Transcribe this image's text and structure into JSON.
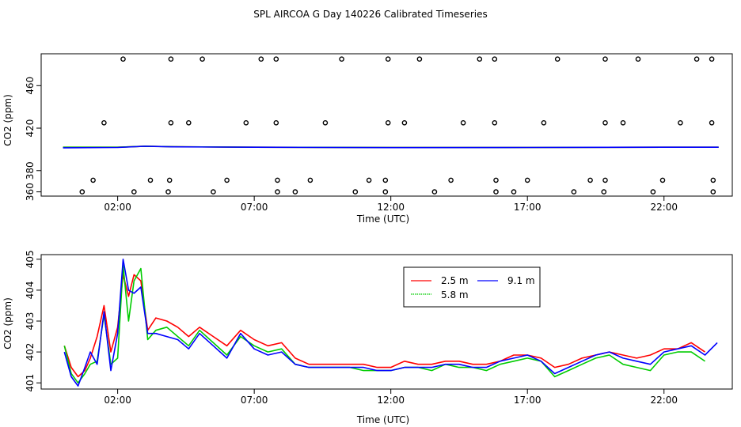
{
  "title": "SPL AIRCOA G  Day 140226  Calibrated Timeseries",
  "chart_data": [
    {
      "type": "scatter+line",
      "xlabel": "Time (UTC)",
      "ylabel": "CO2 (ppm)",
      "xlim": [
        -0.8,
        24.5
      ],
      "ylim": [
        356,
        490
      ],
      "x_ticks": [
        2,
        7,
        12,
        17,
        22
      ],
      "x_tick_labels": [
        "02:00",
        "07:00",
        "12:00",
        "17:00",
        "22:00"
      ],
      "y_ticks": [
        360,
        380,
        420,
        460
      ],
      "y_tick_labels": [
        "360",
        "380",
        "420",
        "460"
      ],
      "calibration_points": {
        "x": [
          2.2,
          3.95,
          5.1,
          7.25,
          7.8,
          10.2,
          11.9,
          13.05,
          15.25,
          15.8,
          18.1,
          19.85,
          21.05,
          23.2,
          23.75,
          1.5,
          3.95,
          4.6,
          6.7,
          7.8,
          9.6,
          11.9,
          12.5,
          14.65,
          15.8,
          17.6,
          19.85,
          20.5,
          22.6,
          23.75,
          1.1,
          3.2,
          3.9,
          6.0,
          7.85,
          9.05,
          11.2,
          11.8,
          14.2,
          15.85,
          17.0,
          19.3,
          19.85,
          21.95,
          23.8,
          0.7,
          2.6,
          3.85,
          5.5,
          7.85,
          8.5,
          10.7,
          11.8,
          13.6,
          15.85,
          16.5,
          18.7,
          19.8,
          21.6,
          23.8
        ],
        "y": [
          485,
          485,
          485,
          485,
          485,
          485,
          485,
          485,
          485,
          485,
          485,
          485,
          485,
          485,
          485,
          425,
          425,
          425,
          425,
          425,
          425,
          425,
          425,
          425,
          425,
          425,
          425,
          425,
          425,
          425,
          371,
          371,
          371,
          371,
          371,
          371,
          371,
          371,
          371,
          371,
          371,
          371,
          371,
          371,
          371,
          360,
          360,
          360,
          360,
          360,
          360,
          360,
          360,
          360,
          360,
          360,
          360,
          360,
          360,
          360
        ]
      },
      "series": [
        {
          "name": "2.5 m",
          "color": "#ff0000",
          "x": [
            0,
            2,
            3,
            4,
            7,
            12,
            17,
            22,
            24
          ],
          "values": [
            402,
            402,
            403,
            402.5,
            402,
            401.7,
            401.8,
            402,
            402
          ]
        },
        {
          "name": "5.8 m",
          "color": "#00cc00",
          "x": [
            0,
            2,
            3,
            4,
            7,
            12,
            17,
            22,
            24
          ],
          "values": [
            402,
            402,
            403,
            402.5,
            402,
            401.7,
            401.8,
            402,
            402
          ]
        },
        {
          "name": "9.1 m",
          "color": "#0000ff",
          "x": [
            0,
            2,
            3,
            4,
            7,
            12,
            17,
            22,
            24
          ],
          "values": [
            401.5,
            401.8,
            403,
            402.4,
            402,
            401.6,
            401.8,
            402,
            402
          ]
        }
      ]
    },
    {
      "type": "line",
      "xlabel": "Time (UTC)",
      "ylabel": "CO2 (ppm)",
      "xlim": [
        -0.8,
        24.5
      ],
      "ylim": [
        400.8,
        405.15
      ],
      "x_ticks": [
        2,
        7,
        12,
        17,
        22
      ],
      "x_tick_labels": [
        "02:00",
        "07:00",
        "12:00",
        "17:00",
        "22:00"
      ],
      "y_ticks": [
        401,
        402,
        403,
        404,
        405
      ],
      "y_tick_labels": [
        "401",
        "402",
        "403",
        "404",
        "405"
      ],
      "legend": {
        "position": "top-center",
        "entries": [
          "2.5 m",
          "9.1 m",
          "5.8 m"
        ]
      },
      "series": [
        {
          "name": "2.5 m",
          "color": "#ff0000",
          "x": [
            0.05,
            0.3,
            0.55,
            0.8,
            1.0,
            1.25,
            1.5,
            1.75,
            2.0,
            2.2,
            2.4,
            2.6,
            2.85,
            3.1,
            3.4,
            3.8,
            4.2,
            4.6,
            5.0,
            5.5,
            6.0,
            6.5,
            7.0,
            7.5,
            8.0,
            8.5,
            9.0,
            9.5,
            10.0,
            10.5,
            11.0,
            11.5,
            12.0,
            12.5,
            13.0,
            13.5,
            14.0,
            14.5,
            15.0,
            15.5,
            16.0,
            16.5,
            17.0,
            17.5,
            18.0,
            18.5,
            19.0,
            19.5,
            20.0,
            20.5,
            21.0,
            21.5,
            22.0,
            22.5,
            23.0,
            23.5
          ],
          "values": [
            402.2,
            401.5,
            401.2,
            401.4,
            401.8,
            402.5,
            403.5,
            402.0,
            402.8,
            404.5,
            403.8,
            404.5,
            404.3,
            402.7,
            403.1,
            403.0,
            402.8,
            402.5,
            402.8,
            402.5,
            402.2,
            402.7,
            402.4,
            402.2,
            402.3,
            401.8,
            401.6,
            401.6,
            401.6,
            401.6,
            401.6,
            401.5,
            401.5,
            401.7,
            401.6,
            401.6,
            401.7,
            401.7,
            401.6,
            401.6,
            401.7,
            401.9,
            401.9,
            401.8,
            401.5,
            401.6,
            401.8,
            401.9,
            402.0,
            401.9,
            401.8,
            401.9,
            402.1,
            402.1,
            402.3,
            402.0
          ]
        },
        {
          "name": "5.8 m",
          "color": "#00cc00",
          "x": [
            0.05,
            0.3,
            0.55,
            0.8,
            1.0,
            1.25,
            1.5,
            1.75,
            2.0,
            2.2,
            2.4,
            2.6,
            2.85,
            3.1,
            3.4,
            3.8,
            4.2,
            4.6,
            5.0,
            5.5,
            6.0,
            6.5,
            7.0,
            7.5,
            8.0,
            8.5,
            9.0,
            9.5,
            10.0,
            10.5,
            11.0,
            11.5,
            12.0,
            12.5,
            13.0,
            13.5,
            14.0,
            14.5,
            15.0,
            15.5,
            16.0,
            16.5,
            17.0,
            17.5,
            18.0,
            18.5,
            19.0,
            19.5,
            20.0,
            20.5,
            21.0,
            21.5,
            22.0,
            22.5,
            23.0,
            23.5
          ],
          "values": [
            402.2,
            401.3,
            401.0,
            401.3,
            401.6,
            401.7,
            403.2,
            401.6,
            401.8,
            404.8,
            403.0,
            404.3,
            404.7,
            402.4,
            402.7,
            402.8,
            402.5,
            402.2,
            402.7,
            402.3,
            401.9,
            402.5,
            402.2,
            402.0,
            402.1,
            401.6,
            401.5,
            401.5,
            401.5,
            401.5,
            401.4,
            401.4,
            401.4,
            401.5,
            401.5,
            401.4,
            401.6,
            401.5,
            401.5,
            401.4,
            401.6,
            401.7,
            401.8,
            401.7,
            401.2,
            401.4,
            401.6,
            401.8,
            401.9,
            401.6,
            401.5,
            401.4,
            401.9,
            402.0,
            402.0,
            401.7
          ]
        },
        {
          "name": "9.1 m",
          "color": "#0000ff",
          "x": [
            0.05,
            0.3,
            0.55,
            0.8,
            1.0,
            1.25,
            1.5,
            1.75,
            2.0,
            2.2,
            2.4,
            2.6,
            2.85,
            3.1,
            3.4,
            3.8,
            4.2,
            4.6,
            5.0,
            5.5,
            6.0,
            6.5,
            7.0,
            7.5,
            8.0,
            8.5,
            9.0,
            9.5,
            10.0,
            10.5,
            11.0,
            11.5,
            12.0,
            12.5,
            13.0,
            13.5,
            14.0,
            14.5,
            15.0,
            15.5,
            16.0,
            16.5,
            17.0,
            17.5,
            18.0,
            18.5,
            19.0,
            19.5,
            20.0,
            20.5,
            21.0,
            21.5,
            22.0,
            22.5,
            23.0,
            23.5,
            23.95
          ],
          "values": [
            402.0,
            401.2,
            400.9,
            401.5,
            402.0,
            401.6,
            403.3,
            401.4,
            402.6,
            405.0,
            404.0,
            403.9,
            404.1,
            402.6,
            402.6,
            402.5,
            402.4,
            402.1,
            402.6,
            402.2,
            401.8,
            402.6,
            402.1,
            401.9,
            402.0,
            401.6,
            401.5,
            401.5,
            401.5,
            401.5,
            401.5,
            401.4,
            401.4,
            401.5,
            401.5,
            401.5,
            401.6,
            401.6,
            401.5,
            401.5,
            401.7,
            401.8,
            401.9,
            401.7,
            401.3,
            401.5,
            401.7,
            401.9,
            402.0,
            401.8,
            401.7,
            401.6,
            402.0,
            402.1,
            402.2,
            401.9,
            402.3
          ]
        }
      ]
    }
  ]
}
